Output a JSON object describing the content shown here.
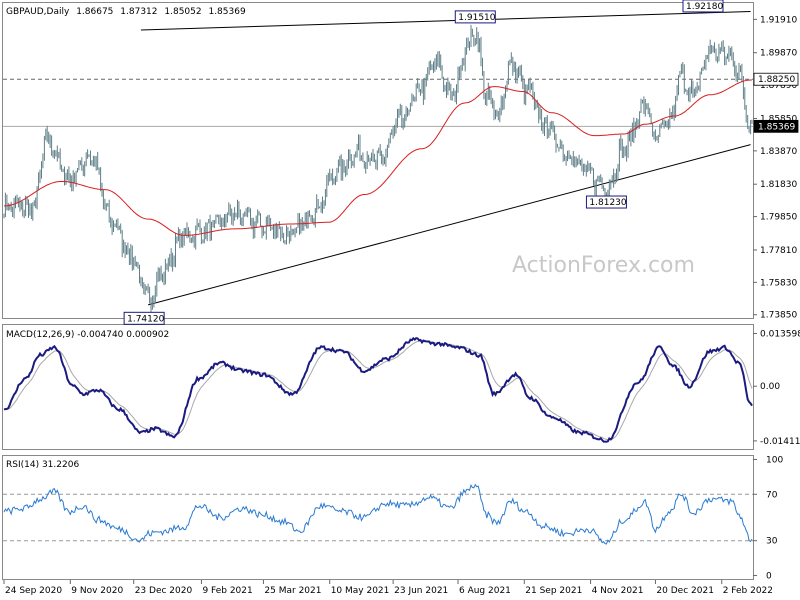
{
  "chart_data": [
    {
      "type": "line",
      "panel": "price",
      "title": "GBPAUD,Daily",
      "ohlc": {
        "open": "1.86675",
        "high": "1.87312",
        "low": "1.85052",
        "close": "1.85369"
      },
      "watermark": "ActionForex.com",
      "ylim": [
        1.7365,
        1.9291
      ],
      "yticks": [
        "1.91910",
        "1.89870",
        "1.87890",
        "1.85850",
        "1.83870",
        "1.81830",
        "1.79850",
        "1.77810",
        "1.75830",
        "1.73850"
      ],
      "yticks_values": [
        1.9191,
        1.8987,
        1.8789,
        1.8585,
        1.8387,
        1.8183,
        1.7985,
        1.7781,
        1.7583,
        1.7385
      ],
      "levels": [
        {
          "label": "1.88250",
          "value": 1.8825,
          "style": "dashed"
        },
        {
          "label": "1.85369",
          "value": 1.85369,
          "style": "solid",
          "highlight": true
        }
      ],
      "annotations": [
        {
          "label": "1.74120",
          "value": 1.7412,
          "date_index": 100
        },
        {
          "label": "1.91510",
          "value": 1.9151,
          "date_index": 327
        },
        {
          "label": "1.81230",
          "value": 1.8123,
          "date_index": 418
        },
        {
          "label": "1.92180",
          "value": 1.9218,
          "date_index": 485
        }
      ],
      "trendlines": [
        {
          "from": [
            95,
            1.9126
          ],
          "to": [
            518,
            1.9239
          ]
        },
        {
          "from": [
            100,
            1.7445
          ],
          "to": [
            518,
            1.8425
          ]
        }
      ],
      "x_count": 520,
      "anchors": [
        [
          0,
          1.805
        ],
        [
          20,
          1.803
        ],
        [
          30,
          1.845
        ],
        [
          45,
          1.822
        ],
        [
          60,
          1.835
        ],
        [
          75,
          1.795
        ],
        [
          88,
          1.775
        ],
        [
          100,
          1.748
        ],
        [
          108,
          1.762
        ],
        [
          125,
          1.787
        ],
        [
          140,
          1.79
        ],
        [
          160,
          1.8
        ],
        [
          180,
          1.793
        ],
        [
          200,
          1.787
        ],
        [
          215,
          1.802
        ],
        [
          232,
          1.827
        ],
        [
          245,
          1.838
        ],
        [
          260,
          1.832
        ],
        [
          275,
          1.857
        ],
        [
          290,
          1.877
        ],
        [
          300,
          1.893
        ],
        [
          310,
          1.872
        ],
        [
          322,
          1.903
        ],
        [
          327,
          1.911
        ],
        [
          335,
          1.872
        ],
        [
          342,
          1.86
        ],
        [
          352,
          1.891
        ],
        [
          362,
          1.877
        ],
        [
          375,
          1.855
        ],
        [
          390,
          1.838
        ],
        [
          405,
          1.825
        ],
        [
          418,
          1.816
        ],
        [
          430,
          1.84
        ],
        [
          445,
          1.867
        ],
        [
          452,
          1.846
        ],
        [
          462,
          1.857
        ],
        [
          470,
          1.885
        ],
        [
          478,
          1.872
        ],
        [
          490,
          1.9
        ],
        [
          505,
          1.897
        ],
        [
          510,
          1.885
        ],
        [
          518,
          1.854
        ]
      ],
      "ma_anchors": [
        [
          0,
          1.805
        ],
        [
          40,
          1.82
        ],
        [
          70,
          1.815
        ],
        [
          100,
          1.797
        ],
        [
          125,
          1.787
        ],
        [
          160,
          1.791
        ],
        [
          200,
          1.794
        ],
        [
          225,
          1.795
        ],
        [
          250,
          1.812
        ],
        [
          290,
          1.84
        ],
        [
          320,
          1.868
        ],
        [
          340,
          1.878
        ],
        [
          360,
          1.875
        ],
        [
          380,
          1.862
        ],
        [
          410,
          1.848
        ],
        [
          430,
          1.849
        ],
        [
          445,
          1.855
        ],
        [
          465,
          1.86
        ],
        [
          490,
          1.873
        ],
        [
          518,
          1.882
        ]
      ],
      "colors": {
        "price": "#5f7f88",
        "ma": "#d81e1e",
        "trend": "#000000",
        "level": "#666666"
      }
    },
    {
      "type": "line",
      "panel": "macd",
      "title": "MACD(12,26,9) -0.004740 0.000902",
      "ylim": [
        -0.0162,
        0.0158
      ],
      "yticks": [
        "0.013598",
        "0.00",
        "-0.014112"
      ],
      "yticks_values": [
        0.013598,
        0.0,
        -0.014112
      ],
      "series_anchors": [
        [
          0,
          -0.006
        ],
        [
          15,
          0.002
        ],
        [
          25,
          0.008
        ],
        [
          35,
          0.01
        ],
        [
          48,
          0.0
        ],
        [
          55,
          -0.002
        ],
        [
          65,
          -0.001
        ],
        [
          80,
          -0.006
        ],
        [
          95,
          -0.012
        ],
        [
          105,
          -0.011
        ],
        [
          118,
          -0.013
        ],
        [
          135,
          0.002
        ],
        [
          150,
          0.006
        ],
        [
          165,
          0.004
        ],
        [
          180,
          0.003
        ],
        [
          200,
          -0.002
        ],
        [
          220,
          0.01
        ],
        [
          235,
          0.009
        ],
        [
          250,
          0.004
        ],
        [
          265,
          0.007
        ],
        [
          285,
          0.012
        ],
        [
          300,
          0.011
        ],
        [
          315,
          0.01
        ],
        [
          330,
          0.008
        ],
        [
          340,
          -0.002
        ],
        [
          355,
          0.003
        ],
        [
          365,
          -0.003
        ],
        [
          380,
          -0.008
        ],
        [
          400,
          -0.012
        ],
        [
          418,
          -0.014
        ],
        [
          440,
          0.001
        ],
        [
          455,
          0.01
        ],
        [
          465,
          0.005
        ],
        [
          475,
          0.0
        ],
        [
          490,
          0.009
        ],
        [
          500,
          0.01
        ],
        [
          510,
          0.006
        ],
        [
          518,
          -0.0047
        ]
      ],
      "colors": {
        "macd": "#1a1a80",
        "signal": "#a8a8a8"
      }
    },
    {
      "type": "line",
      "panel": "rsi",
      "title": "RSI(14) 31.2206",
      "ylim": [
        -3,
        103
      ],
      "yticks": [
        "100",
        "70",
        "30",
        "0"
      ],
      "yticks_values": [
        100,
        70,
        30,
        0
      ],
      "levels": [
        70,
        30
      ],
      "series_anchors": [
        [
          0,
          55
        ],
        [
          15,
          58
        ],
        [
          25,
          66
        ],
        [
          35,
          72
        ],
        [
          45,
          55
        ],
        [
          55,
          60
        ],
        [
          65,
          48
        ],
        [
          80,
          40
        ],
        [
          95,
          30
        ],
        [
          100,
          36
        ],
        [
          110,
          38
        ],
        [
          125,
          42
        ],
        [
          135,
          60
        ],
        [
          150,
          50
        ],
        [
          165,
          58
        ],
        [
          180,
          52
        ],
        [
          195,
          46
        ],
        [
          205,
          38
        ],
        [
          220,
          60
        ],
        [
          235,
          55
        ],
        [
          250,
          50
        ],
        [
          265,
          62
        ],
        [
          280,
          60
        ],
        [
          295,
          67
        ],
        [
          310,
          58
        ],
        [
          320,
          72
        ],
        [
          327,
          78
        ],
        [
          335,
          52
        ],
        [
          342,
          45
        ],
        [
          352,
          64
        ],
        [
          362,
          55
        ],
        [
          375,
          42
        ],
        [
          390,
          36
        ],
        [
          405,
          40
        ],
        [
          418,
          28
        ],
        [
          430,
          48
        ],
        [
          445,
          63
        ],
        [
          452,
          40
        ],
        [
          462,
          56
        ],
        [
          470,
          70
        ],
        [
          478,
          54
        ],
        [
          490,
          66
        ],
        [
          505,
          64
        ],
        [
          510,
          52
        ],
        [
          518,
          31.22
        ]
      ],
      "colors": {
        "rsi": "#2a7ad0",
        "level": "#999999"
      }
    }
  ],
  "x_axis": {
    "labels": [
      "24 Sep 2020",
      "9 Nov 2020",
      "23 Dec 2020",
      "9 Feb 2021",
      "25 Mar 2021",
      "10 May 2021",
      "23 Jun 2021",
      "6 Aug 2021",
      "21 Sep 2021",
      "4 Nov 2021",
      "20 Dec 2021",
      "2 Feb 2022"
    ],
    "label_index": [
      0,
      46,
      90,
      137,
      180,
      226,
      270,
      315,
      361,
      407,
      452,
      498
    ]
  }
}
